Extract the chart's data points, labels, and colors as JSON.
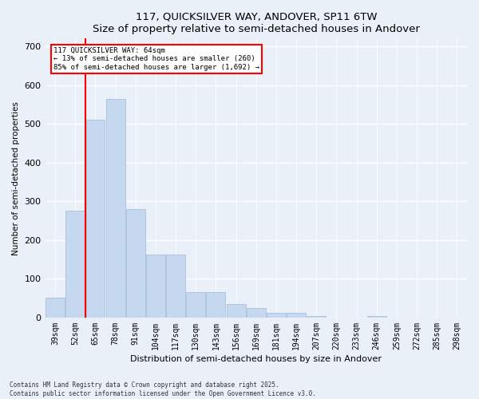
{
  "title": "117, QUICKSILVER WAY, ANDOVER, SP11 6TW",
  "subtitle": "Size of property relative to semi-detached houses in Andover",
  "xlabel": "Distribution of semi-detached houses by size in Andover",
  "ylabel": "Number of semi-detached properties",
  "categories": [
    "39sqm",
    "52sqm",
    "65sqm",
    "78sqm",
    "91sqm",
    "104sqm",
    "117sqm",
    "130sqm",
    "143sqm",
    "156sqm",
    "169sqm",
    "181sqm",
    "194sqm",
    "207sqm",
    "220sqm",
    "233sqm",
    "246sqm",
    "259sqm",
    "272sqm",
    "285sqm",
    "298sqm"
  ],
  "values": [
    52,
    275,
    510,
    565,
    280,
    162,
    162,
    65,
    65,
    35,
    25,
    12,
    12,
    5,
    0,
    0,
    5,
    0,
    0,
    0,
    0
  ],
  "bar_color": "#c5d8f0",
  "bar_edge_color": "#a0b8d8",
  "vline_color": "red",
  "vline_x": 1.5,
  "annotation_title": "117 QUICKSILVER WAY: 64sqm",
  "annotation_line1": "← 13% of semi-detached houses are smaller (260)",
  "annotation_line2": "85% of semi-detached houses are larger (1,692) →",
  "ylim": [
    0,
    720
  ],
  "yticks": [
    0,
    100,
    200,
    300,
    400,
    500,
    600,
    700
  ],
  "footer1": "Contains HM Land Registry data © Crown copyright and database right 2025.",
  "footer2": "Contains public sector information licensed under the Open Government Licence v3.0.",
  "bg_color": "#eaf0f8",
  "plot_bg_color": "#eaf0f8",
  "grid_color": "#ffffff"
}
